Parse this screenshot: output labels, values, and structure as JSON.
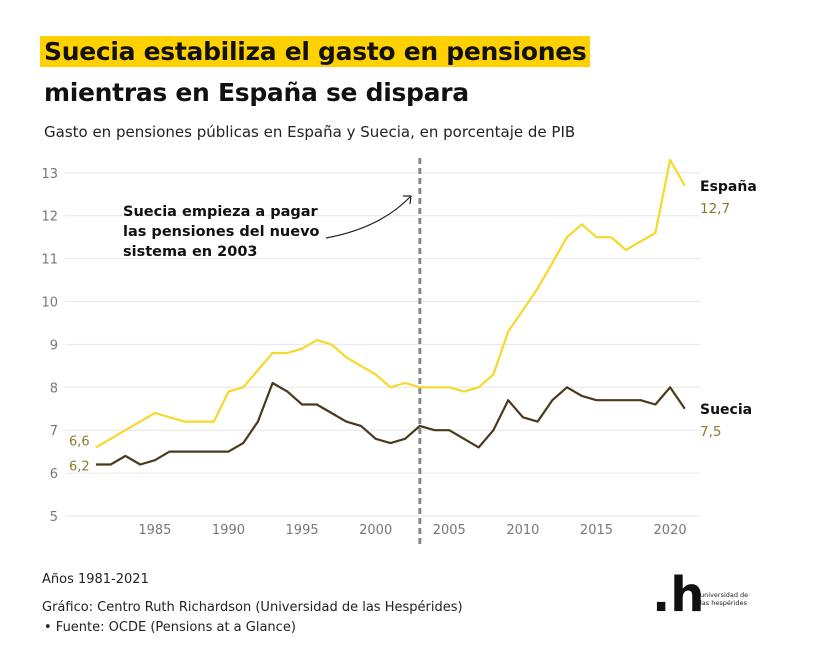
{
  "title_line1": "Suecia estabiliza el gasto en pensiones",
  "title_line2": "mientras en España se dispara",
  "subtitle": "Gasto en pensiones públicas en España y Suecia, en porcentaje de PIB",
  "footer": {
    "years": "Años 1981-2021",
    "credit": "Gráfico: Centro Ruth Richardson (Universidad de las Hespérides)",
    "source": "• Fuente: OCDE (Pensions at a Glance)"
  },
  "logo": {
    "mark": ".h",
    "text": "universidad de las hespérides"
  },
  "chart_data": {
    "type": "line",
    "x": [
      1981,
      1982,
      1983,
      1984,
      1985,
      1986,
      1987,
      1988,
      1989,
      1990,
      1991,
      1992,
      1993,
      1994,
      1995,
      1996,
      1997,
      1998,
      1999,
      2000,
      2001,
      2002,
      2003,
      2004,
      2005,
      2006,
      2007,
      2008,
      2009,
      2010,
      2011,
      2012,
      2013,
      2014,
      2015,
      2016,
      2017,
      2018,
      2019,
      2020,
      2021
    ],
    "series": [
      {
        "name": "España",
        "color": "#F5D92A",
        "start_label": "6,6",
        "end_label": "12,7",
        "values": [
          6.6,
          6.8,
          7.0,
          7.2,
          7.4,
          7.3,
          7.2,
          7.2,
          7.2,
          7.9,
          8.0,
          8.4,
          8.8,
          8.8,
          8.9,
          9.1,
          9.0,
          8.7,
          8.5,
          8.3,
          8.0,
          8.1,
          8.0,
          8.0,
          8.0,
          7.9,
          8.0,
          8.3,
          9.3,
          9.8,
          10.3,
          10.9,
          11.5,
          11.8,
          11.5,
          11.5,
          11.2,
          11.4,
          11.6,
          13.3,
          12.7
        ]
      },
      {
        "name": "Suecia",
        "color": "#4A3A1C",
        "start_label": "6,2",
        "end_label": "7,5",
        "values": [
          6.2,
          6.2,
          6.4,
          6.2,
          6.3,
          6.5,
          6.5,
          6.5,
          6.5,
          6.5,
          6.7,
          7.2,
          8.1,
          7.9,
          7.6,
          7.6,
          7.4,
          7.2,
          7.1,
          6.8,
          6.7,
          6.8,
          7.1,
          7.0,
          7.0,
          6.8,
          6.6,
          7.0,
          7.7,
          7.3,
          7.2,
          7.7,
          8.0,
          7.8,
          7.7,
          7.7,
          7.7,
          7.7,
          7.6,
          8.0,
          7.5
        ]
      }
    ],
    "ylim": [
      5,
      13
    ],
    "yticks": [
      5,
      6,
      7,
      8,
      9,
      10,
      11,
      12,
      13
    ],
    "xticks": [
      1985,
      1990,
      1995,
      2000,
      2005,
      2010,
      2015,
      2020
    ],
    "grid": true,
    "reference_line": {
      "x": 2003
    },
    "annotation": [
      "Suecia empieza a pagar",
      "las pensiones del nuevo",
      "sistema en 2003"
    ],
    "end_label_color": "#8A7A2E"
  }
}
